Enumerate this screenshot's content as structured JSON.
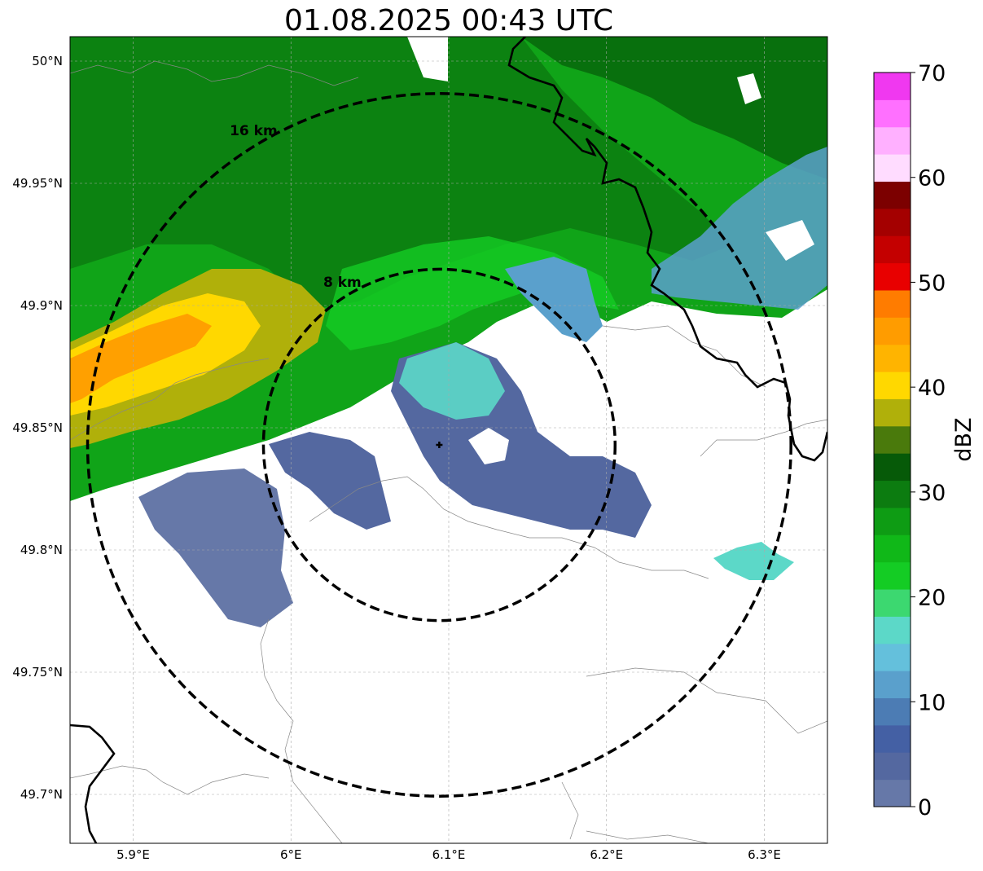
{
  "title": "01.08.2025 00:43 UTC",
  "map": {
    "lon_range": [
      5.86,
      6.34
    ],
    "lat_range": [
      49.68,
      50.01
    ],
    "lat_ticks": [
      {
        "value": 50.0,
        "label": "50°N"
      },
      {
        "value": 49.95,
        "label": "49.95°N"
      },
      {
        "value": 49.9,
        "label": "49.9°N"
      },
      {
        "value": 49.85,
        "label": "49.85°N"
      },
      {
        "value": 49.8,
        "label": "49.8°N"
      },
      {
        "value": 49.75,
        "label": "49.75°N"
      },
      {
        "value": 49.7,
        "label": "49.7°N"
      }
    ],
    "lon_ticks": [
      {
        "value": 5.9,
        "label": "5.9°E"
      },
      {
        "value": 6.0,
        "label": "6°E"
      },
      {
        "value": 6.1,
        "label": "6.1°E"
      },
      {
        "value": 6.2,
        "label": "6.2°E"
      },
      {
        "value": 6.3,
        "label": "6.3°E"
      }
    ],
    "grid": true,
    "radar_site": {
      "lon": 6.094,
      "lat": 49.843
    },
    "range_rings": [
      {
        "label": "8 km",
        "range_km": 8
      },
      {
        "label": "16 km",
        "range_km": 16
      }
    ]
  },
  "colorbar": {
    "label": "dBZ",
    "min": 0,
    "max": 70,
    "tick_labels": [
      "0",
      "10",
      "20",
      "30",
      "40",
      "50",
      "60",
      "70"
    ],
    "colors": [
      "#6678a8",
      "#5468a0",
      "#4460a4",
      "#4c7cb4",
      "#5aa0cc",
      "#64c0dc",
      "#5cd8c8",
      "#3cd870",
      "#14cc24",
      "#10b818",
      "#0e9c14",
      "#0c7c10",
      "#065a08",
      "#4a7a0c",
      "#b0b00a",
      "#ffd800",
      "#ffb400",
      "#ff9c00",
      "#ff7c00",
      "#e80000",
      "#c40000",
      "#a40000",
      "#7c0000",
      "#ffdcff",
      "#ffb0ff",
      "#ff70ff",
      "#f038f0"
    ]
  }
}
